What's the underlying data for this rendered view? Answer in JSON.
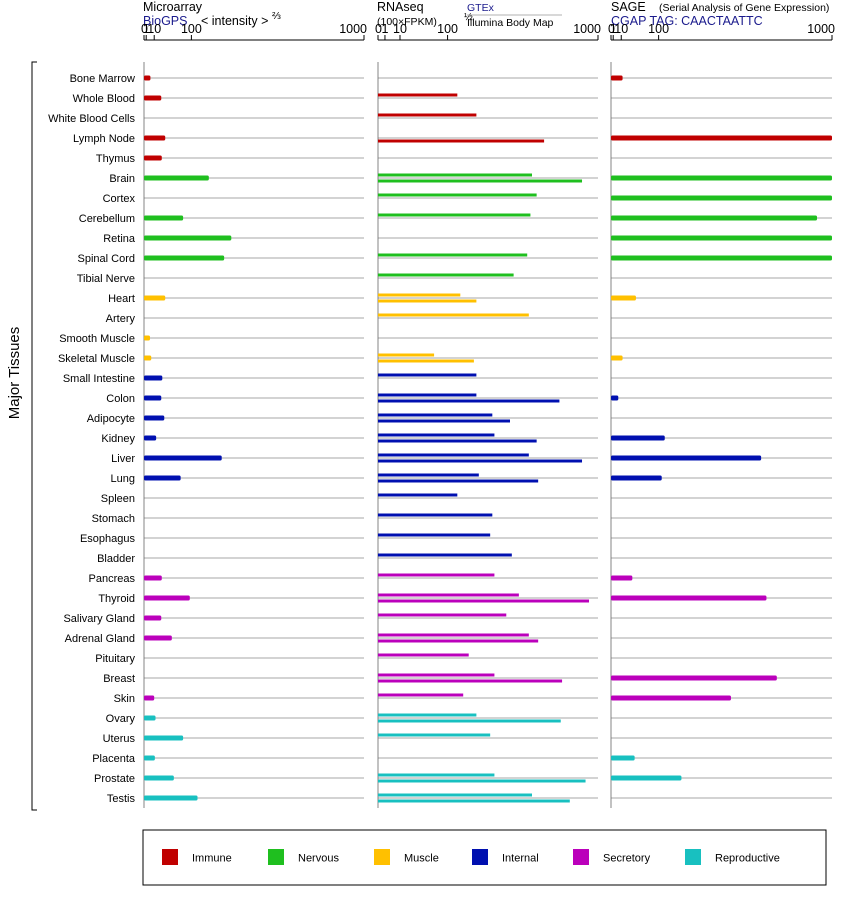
{
  "chart_data": {
    "type": "bar",
    "ylabel": "Major Tissues",
    "group_colors": {
      "Immune": "#c00000",
      "Nervous": "#1fbf1f",
      "Muscle": "#ffc000",
      "Internal": "#0010b0",
      "Secretory": "#bb00bb",
      "Reproductive": "#18c0c0"
    },
    "legend": [
      "Immune",
      "Nervous",
      "Muscle",
      "Internal",
      "Secretory",
      "Reproductive"
    ],
    "categories": [
      "Bone Marrow",
      "Whole Blood",
      "White Blood Cells",
      "Lymph Node",
      "Thymus",
      "Brain",
      "Cortex",
      "Cerebellum",
      "Retina",
      "Spinal Cord",
      "Tibial Nerve",
      "Heart",
      "Artery",
      "Smooth Muscle",
      "Skeletal Muscle",
      "Small Intestine",
      "Colon",
      "Adipocyte",
      "Kidney",
      "Liver",
      "Lung",
      "Spleen",
      "Stomach",
      "Esophagus",
      "Bladder",
      "Pancreas",
      "Thyroid",
      "Salivary Gland",
      "Adrenal Gland",
      "Pituitary",
      "Breast",
      "Skin",
      "Ovary",
      "Uterus",
      "Placenta",
      "Prostate",
      "Testis"
    ],
    "groups": [
      "Immune",
      "Immune",
      "Immune",
      "Immune",
      "Immune",
      "Nervous",
      "Nervous",
      "Nervous",
      "Nervous",
      "Nervous",
      "Nervous",
      "Muscle",
      "Muscle",
      "Muscle",
      "Muscle",
      "Internal",
      "Internal",
      "Internal",
      "Internal",
      "Internal",
      "Internal",
      "Internal",
      "Internal",
      "Internal",
      "Internal",
      "Secretory",
      "Secretory",
      "Secretory",
      "Secretory",
      "Secretory",
      "Secretory",
      "Secretory",
      "Reproductive",
      "Reproductive",
      "Reproductive",
      "Reproductive",
      "Reproductive"
    ],
    "panels": [
      {
        "title": "Microarray",
        "subtitle": "BioGPS",
        "scale_label": "< intensity >",
        "scale_exp": "⅔",
        "ticks": [
          "0",
          "1",
          "10",
          "100",
          "1000"
        ],
        "tick_values": [
          0,
          1,
          10,
          100,
          1000
        ],
        "exponent": 0.6667,
        "xlim": [
          0,
          1000
        ],
        "series": [
          {
            "name": "",
            "values": [
              5,
              22,
              null,
              30,
              23,
              160,
              null,
              75,
              250,
              220,
              null,
              30,
              null,
              4.5,
              6,
              24,
              22,
              28,
              13,
              210,
              68,
              null,
              null,
              null,
              null,
              23,
              95,
              22,
              45,
              null,
              null,
              10,
              12,
              75,
              11,
              50,
              120
            ]
          }
        ]
      },
      {
        "title": "RNAseq",
        "scale_label": "(100×FPKM)",
        "scale_exp": "½",
        "source_a": "GTEx",
        "source_b": "Illumina Body Map",
        "ticks": [
          "0",
          "1",
          "10",
          "100",
          "1000"
        ],
        "tick_values": [
          0,
          1,
          10,
          100,
          1000
        ],
        "exponent": 0.5,
        "xlim": [
          0,
          1000
        ],
        "series": [
          {
            "name": "GTEx",
            "values": [
              null,
              130,
              200,
              null,
              null,
              490,
              520,
              480,
              null,
              460,
              380,
              140,
              470,
              null,
              65,
              200,
              200,
              270,
              280,
              470,
              210,
              130,
              270,
              260,
              370,
              280,
              410,
              340,
              470,
              170,
              280,
              150,
              200,
              260,
              null,
              280,
              490
            ]
          },
          {
            "name": "Illumina Body Map",
            "values": [
              null,
              null,
              null,
              570,
              null,
              860,
              null,
              null,
              null,
              null,
              null,
              200,
              null,
              null,
              190,
              null,
              680,
              360,
              520,
              860,
              530,
              null,
              null,
              null,
              null,
              null,
              920,
              null,
              530,
              null,
              700,
              null,
              690,
              null,
              null,
              890,
              760
            ]
          }
        ]
      },
      {
        "title": "SAGE",
        "subtitle_small": "(Serial Analysis of Gene Expression)",
        "subtitle": "CGAP TAG: CAACTAATTC",
        "ticks": [
          "0",
          "1",
          "10",
          "100",
          "1000"
        ],
        "tick_values": [
          0,
          1,
          10,
          100,
          1000
        ],
        "exponent": 0.6667,
        "xlim": [
          0,
          1000
        ],
        "series": [
          {
            "name": "",
            "values": [
              12,
              null,
              null,
              1000,
              null,
              1000,
              1000,
              900,
              1000,
              1000,
              null,
              38,
              null,
              null,
              12,
              null,
              6,
              null,
              120,
              560,
              110,
              null,
              null,
              null,
              null,
              30,
              590,
              null,
              null,
              null,
              650,
              400,
              null,
              null,
              35,
              180,
              null
            ]
          }
        ]
      }
    ]
  }
}
